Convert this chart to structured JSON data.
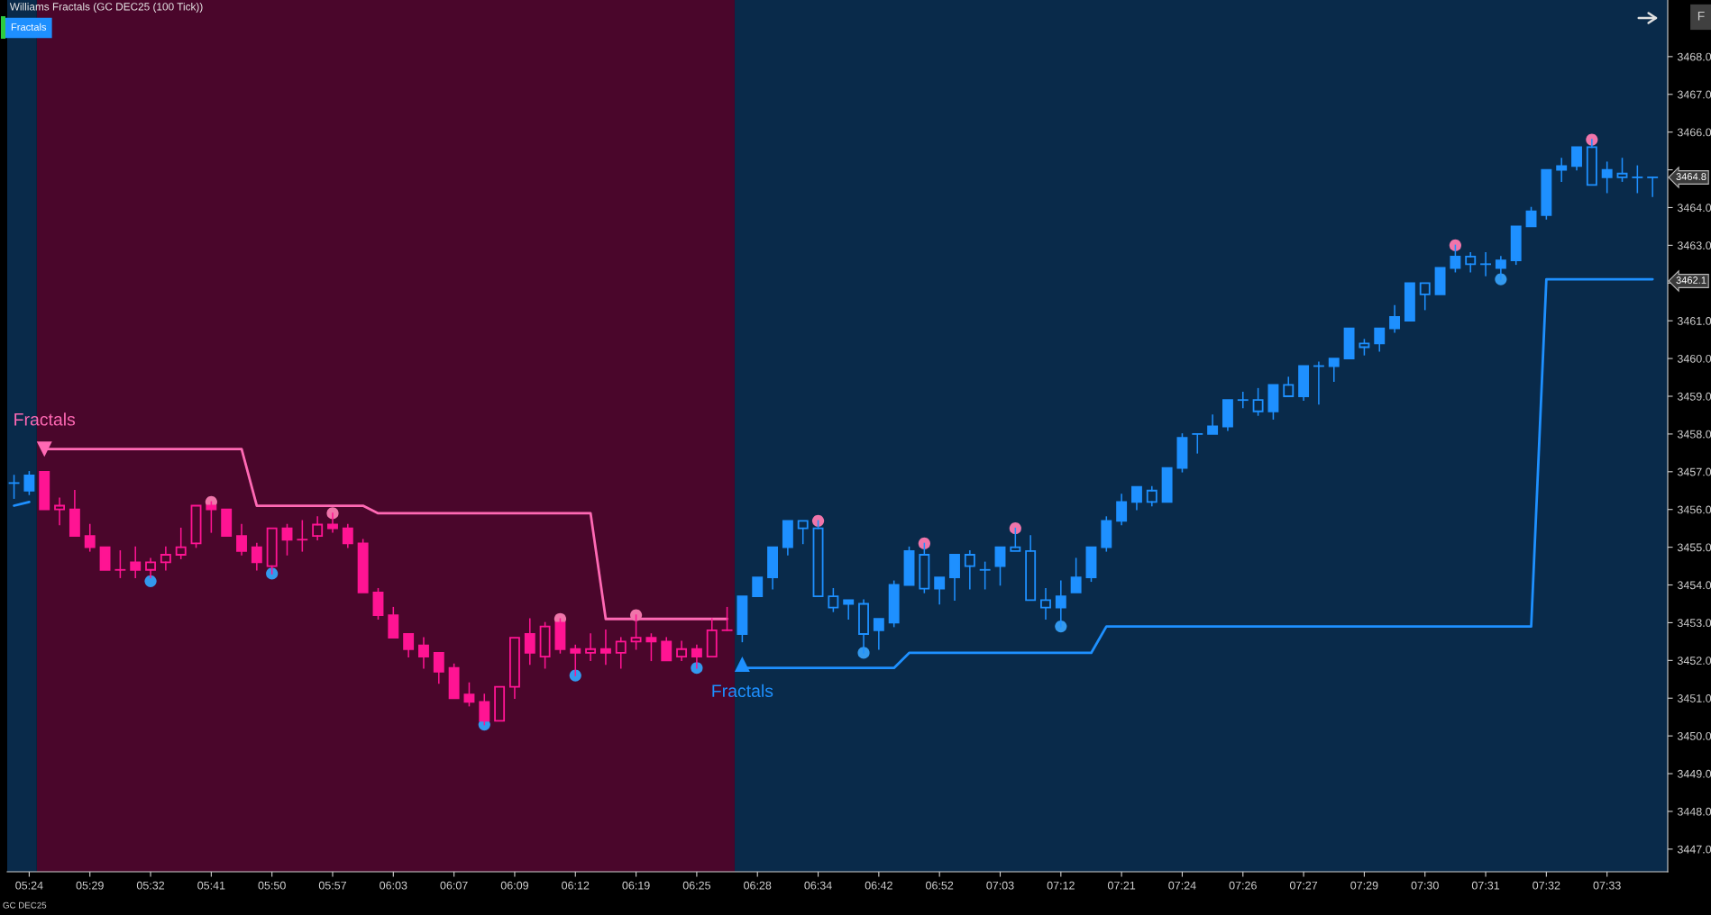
{
  "chart_data": {
    "type": "candlestick",
    "title": "Williams Fractals (GC DEC25 (100 Tick))",
    "categories": [
      null,
      "05:24",
      null,
      null,
      null,
      "05:29",
      null,
      null,
      null,
      "05:32",
      null,
      null,
      null,
      "05:41",
      null,
      null,
      null,
      "05:50",
      null,
      null,
      null,
      "05:57",
      null,
      null,
      null,
      "06:03",
      null,
      null,
      null,
      "06:07",
      null,
      null,
      null,
      "06:09",
      null,
      null,
      null,
      "06:12",
      null,
      null,
      null,
      "06:19",
      null,
      null,
      null,
      "06:25",
      null,
      null,
      null,
      "06:28",
      null,
      null,
      null,
      "06:34",
      null,
      null,
      null,
      "06:42",
      null,
      null,
      null,
      "06:52",
      null,
      null,
      null,
      "07:03",
      null,
      null,
      null,
      "07:12",
      null,
      null,
      null,
      "07:21",
      null,
      null,
      null,
      "07:24",
      null,
      null,
      null,
      "07:26",
      null,
      null,
      null,
      "07:27",
      null,
      null,
      null,
      "07:29",
      null,
      null,
      null,
      "07:30",
      null,
      null,
      null,
      "07:31",
      null,
      null,
      null,
      "07:32",
      null,
      null,
      null,
      "07:33",
      null,
      null,
      null
    ],
    "ylim": [
      3446.4,
      3469.5
    ],
    "yticks": [
      {
        "value": 3447,
        "label": "3447.0"
      },
      {
        "value": 3448,
        "label": "3448.0"
      },
      {
        "value": 3449,
        "label": "3449.0"
      },
      {
        "value": 3450,
        "label": "3450.0"
      },
      {
        "value": 3451,
        "label": "3451.0"
      },
      {
        "value": 3452,
        "label": "3452.0"
      },
      {
        "value": 3453,
        "label": "3453.0"
      },
      {
        "value": 3454,
        "label": "3454.0"
      },
      {
        "value": 3455,
        "label": "3455.0"
      },
      {
        "value": 3456,
        "label": "3456.0"
      },
      {
        "value": 3457,
        "label": "3457.0"
      },
      {
        "value": 3458,
        "label": "3458.0"
      },
      {
        "value": 3459,
        "label": "3459.0"
      },
      {
        "value": 3460,
        "label": "3460.0"
      },
      {
        "value": 3461,
        "label": "3461.0"
      },
      {
        "value": 3462,
        "label": null
      },
      {
        "value": 3463,
        "label": "3463.0"
      },
      {
        "value": 3464,
        "label": "3464.0"
      },
      {
        "value": 3465,
        "label": null
      },
      {
        "value": 3466,
        "label": "3466.0"
      },
      {
        "value": 3467,
        "label": "3467.0"
      },
      {
        "value": 3468,
        "label": "3468.0"
      }
    ],
    "grid": false,
    "series": [
      {
        "type": "candlestick",
        "color": "#ff1493",
        "ohlc": [
          null,
          null,
          [
            3457.0,
            3457.0,
            3456.0,
            3456.0
          ],
          [
            3456.0,
            3456.3,
            3455.6,
            3456.1
          ],
          [
            3456.0,
            3456.5,
            3455.3,
            3455.3
          ],
          [
            3455.3,
            3455.6,
            3454.9,
            3455.0
          ],
          [
            3455.0,
            3455.0,
            3454.4,
            3454.4
          ],
          [
            3454.4,
            3454.9,
            3454.2,
            3454.4
          ],
          [
            3454.6,
            3455.0,
            3454.2,
            3454.4
          ],
          [
            3454.4,
            3454.7,
            3454.2,
            3454.6
          ],
          [
            3454.6,
            3455.0,
            3454.4,
            3454.8
          ],
          [
            3454.8,
            3455.5,
            3454.7,
            3455.0
          ],
          [
            3455.1,
            3456.1,
            3455.0,
            3456.1
          ],
          [
            3456.1,
            3456.2,
            3455.4,
            3456.0
          ],
          [
            3456.0,
            3456.0,
            3455.3,
            3455.3
          ],
          [
            3455.3,
            3455.6,
            3454.8,
            3454.9
          ],
          [
            3455.0,
            3455.1,
            3454.4,
            3454.6
          ],
          [
            3454.5,
            3455.5,
            3454.3,
            3455.5
          ],
          [
            3455.5,
            3455.6,
            3454.8,
            3455.2
          ],
          [
            3455.2,
            3455.7,
            3454.9,
            3455.2
          ],
          [
            3455.3,
            3455.8,
            3455.2,
            3455.6
          ],
          [
            3455.6,
            3455.9,
            3455.4,
            3455.5
          ],
          [
            3455.5,
            3455.6,
            3455.0,
            3455.1
          ],
          [
            3455.1,
            3455.2,
            3453.8,
            3453.8
          ],
          [
            3453.8,
            3453.9,
            3453.1,
            3453.2
          ],
          [
            3453.2,
            3453.4,
            3452.6,
            3452.6
          ],
          [
            3452.7,
            3452.7,
            3452.1,
            3452.3
          ],
          [
            3452.4,
            3452.6,
            3451.8,
            3452.1
          ],
          [
            3452.2,
            3452.2,
            3451.4,
            3451.7
          ],
          [
            3451.8,
            3451.9,
            3451.0,
            3451.0
          ],
          [
            3451.1,
            3451.4,
            3450.8,
            3450.9
          ],
          [
            3450.9,
            3451.1,
            3450.3,
            3450.4
          ],
          [
            3450.4,
            3451.3,
            3450.4,
            3451.3
          ],
          [
            3451.3,
            3452.6,
            3451.0,
            3452.6
          ],
          [
            3452.7,
            3453.1,
            3451.9,
            3452.2
          ],
          [
            3452.1,
            3453.0,
            3451.8,
            3452.9
          ],
          [
            3453.0,
            3453.1,
            3452.2,
            3452.3
          ],
          [
            3452.3,
            3452.4,
            3451.6,
            3452.2
          ],
          [
            3452.2,
            3452.7,
            3452.0,
            3452.3
          ],
          [
            3452.3,
            3452.8,
            3451.9,
            3452.2
          ],
          [
            3452.2,
            3452.6,
            3451.8,
            3452.5
          ],
          [
            3452.5,
            3453.2,
            3452.3,
            3452.6
          ],
          [
            3452.6,
            3452.7,
            3452.0,
            3452.5
          ],
          [
            3452.5,
            3452.6,
            3452.0,
            3452.0
          ],
          [
            3452.1,
            3452.5,
            3452.0,
            3452.3
          ],
          [
            3452.3,
            3452.4,
            3451.8,
            3452.1
          ],
          [
            3452.1,
            3453.1,
            3452.1,
            3452.8
          ],
          [
            3452.8,
            3453.4,
            3452.8,
            3452.8
          ],
          null,
          null,
          null,
          null,
          null,
          null,
          null,
          null,
          null,
          null,
          null,
          null,
          null,
          null,
          null,
          null,
          null,
          null,
          null,
          null,
          null,
          null,
          null,
          null,
          null,
          null,
          null,
          null,
          null,
          null,
          null,
          null,
          null,
          null,
          null,
          null,
          null,
          null,
          null,
          null,
          null,
          null,
          null,
          null,
          null,
          null,
          null,
          null,
          null,
          null,
          null,
          null,
          null,
          null,
          null,
          null,
          null,
          null,
          null,
          null,
          null
        ]
      },
      {
        "type": "candlestick",
        "color": "#1e90ff",
        "ohlc": [
          [
            3456.7,
            3456.9,
            3456.3,
            3456.7
          ],
          [
            3456.5,
            3457.0,
            3456.4,
            3456.9
          ],
          null,
          null,
          null,
          null,
          null,
          null,
          null,
          null,
          null,
          null,
          null,
          null,
          null,
          null,
          null,
          null,
          null,
          null,
          null,
          null,
          null,
          null,
          null,
          null,
          null,
          null,
          null,
          null,
          null,
          null,
          null,
          null,
          null,
          null,
          null,
          null,
          null,
          null,
          null,
          null,
          null,
          null,
          null,
          null,
          null,
          null,
          [
            3452.7,
            3453.7,
            3452.5,
            3453.7
          ],
          [
            3453.7,
            3454.2,
            3453.7,
            3454.2
          ],
          [
            3454.2,
            3455.0,
            3453.9,
            3455.0
          ],
          [
            3455.0,
            3455.7,
            3454.8,
            3455.7
          ],
          [
            3455.7,
            3455.7,
            3455.1,
            3455.5
          ],
          [
            3455.5,
            3455.7,
            3453.7,
            3453.7
          ],
          [
            3453.7,
            3453.9,
            3453.3,
            3453.4
          ],
          [
            3453.5,
            3453.6,
            3453.1,
            3453.6
          ],
          [
            3453.5,
            3453.6,
            3452.2,
            3452.7
          ],
          [
            3452.8,
            3453.1,
            3452.3,
            3453.1
          ],
          [
            3453.0,
            3454.1,
            3452.9,
            3454.0
          ],
          [
            3454.0,
            3455.0,
            3454.0,
            3454.9
          ],
          [
            3454.8,
            3455.1,
            3453.8,
            3453.9
          ],
          [
            3453.9,
            3454.2,
            3453.5,
            3454.2
          ],
          [
            3454.2,
            3454.8,
            3453.6,
            3454.8
          ],
          [
            3454.8,
            3454.9,
            3453.9,
            3454.5
          ],
          [
            3454.4,
            3454.6,
            3453.9,
            3454.4
          ],
          [
            3454.5,
            3455.0,
            3454.0,
            3455.0
          ],
          [
            3455.0,
            3455.5,
            3454.9,
            3454.9
          ],
          [
            3454.9,
            3455.3,
            3453.6,
            3453.6
          ],
          [
            3453.6,
            3453.9,
            3453.1,
            3453.4
          ],
          [
            3453.4,
            3454.1,
            3452.9,
            3453.7
          ],
          [
            3453.8,
            3454.7,
            3453.8,
            3454.2
          ],
          [
            3454.2,
            3455.0,
            3454.1,
            3455.0
          ],
          [
            3455.0,
            3455.8,
            3454.9,
            3455.7
          ],
          [
            3455.7,
            3456.4,
            3455.6,
            3456.2
          ],
          [
            3456.2,
            3456.6,
            3456.0,
            3456.6
          ],
          [
            3456.5,
            3456.6,
            3456.1,
            3456.2
          ],
          [
            3456.2,
            3457.1,
            3456.2,
            3457.1
          ],
          [
            3457.1,
            3458.0,
            3457.0,
            3457.9
          ],
          [
            3458.0,
            3458.0,
            3457.5,
            3458.0
          ],
          [
            3458.0,
            3458.5,
            3458.0,
            3458.2
          ],
          [
            3458.2,
            3458.9,
            3458.1,
            3458.9
          ],
          [
            3458.9,
            3459.1,
            3458.7,
            3458.9
          ],
          [
            3458.9,
            3459.2,
            3458.5,
            3458.6
          ],
          [
            3458.6,
            3459.3,
            3458.4,
            3459.3
          ],
          [
            3459.3,
            3459.5,
            3459.0,
            3459.0
          ],
          [
            3459.0,
            3459.8,
            3458.9,
            3459.8
          ],
          [
            3459.8,
            3459.9,
            3458.8,
            3459.8
          ],
          [
            3459.8,
            3460.0,
            3459.4,
            3460.0
          ],
          [
            3460.0,
            3460.8,
            3460.0,
            3460.8
          ],
          [
            3460.4,
            3460.5,
            3460.1,
            3460.3
          ],
          [
            3460.4,
            3460.8,
            3460.2,
            3460.8
          ],
          [
            3460.8,
            3461.4,
            3460.7,
            3461.1
          ],
          [
            3461.0,
            3462.0,
            3461.0,
            3462.0
          ],
          [
            3462.0,
            3462.0,
            3461.3,
            3461.7
          ],
          [
            3461.7,
            3462.4,
            3461.7,
            3462.4
          ],
          [
            3462.4,
            3463.0,
            3462.3,
            3462.7
          ],
          [
            3462.7,
            3462.8,
            3462.3,
            3462.5
          ],
          [
            3462.5,
            3462.8,
            3462.2,
            3462.5
          ],
          [
            3462.4,
            3462.7,
            3462.1,
            3462.6
          ],
          [
            3462.6,
            3463.5,
            3462.5,
            3463.5
          ],
          [
            3463.5,
            3464.0,
            3463.5,
            3463.9
          ],
          [
            3463.8,
            3465.0,
            3463.7,
            3465.0
          ],
          [
            3465.0,
            3465.3,
            3464.7,
            3465.1
          ],
          [
            3465.1,
            3465.6,
            3465.0,
            3465.6
          ],
          [
            3465.6,
            3465.8,
            3464.6,
            3464.6
          ],
          [
            3464.8,
            3465.2,
            3464.4,
            3465.0
          ],
          [
            3464.9,
            3465.3,
            3464.7,
            3464.8
          ],
          [
            3464.8,
            3465.1,
            3464.4,
            3464.8
          ],
          [
            3464.8,
            3464.8,
            3464.3,
            3464.8
          ]
        ]
      },
      {
        "type": "line",
        "color": "#ff69b4",
        "values": [
          null,
          null,
          3457.6,
          3457.6,
          3457.6,
          3457.6,
          3457.6,
          3457.6,
          3457.6,
          3457.6,
          3457.6,
          3457.6,
          3457.6,
          3457.6,
          3457.6,
          3457.6,
          3456.1,
          3456.1,
          3456.1,
          3456.1,
          3456.1,
          3456.1,
          3456.1,
          3456.1,
          3455.9,
          3455.9,
          3455.9,
          3455.9,
          3455.9,
          3455.9,
          3455.9,
          3455.9,
          3455.9,
          3455.9,
          3455.9,
          3455.9,
          3455.9,
          3455.9,
          3455.9,
          3453.1,
          3453.1,
          3453.1,
          3453.1,
          3453.1,
          3453.1,
          3453.1,
          3453.1,
          3453.1,
          null,
          null,
          null,
          null,
          null,
          null,
          null,
          null,
          null,
          null,
          null,
          null,
          null,
          null,
          null,
          null,
          null,
          null,
          null,
          null,
          null,
          null,
          null,
          null,
          null,
          null,
          null,
          null,
          null,
          null,
          null,
          null,
          null,
          null,
          null,
          null,
          null,
          null,
          null,
          null,
          null,
          null,
          null,
          null,
          null,
          null,
          null,
          null,
          null,
          null,
          null,
          null,
          null,
          null,
          null,
          null,
          null,
          null,
          null,
          null,
          null
        ]
      },
      {
        "type": "line",
        "color": "#1e90ff",
        "values": [
          3456.1,
          3456.2,
          null,
          null,
          null,
          null,
          null,
          null,
          null,
          null,
          null,
          null,
          null,
          null,
          null,
          null,
          null,
          null,
          null,
          null,
          null,
          null,
          null,
          null,
          null,
          null,
          null,
          null,
          null,
          null,
          null,
          null,
          null,
          null,
          null,
          null,
          null,
          null,
          null,
          null,
          null,
          null,
          null,
          null,
          null,
          null,
          null,
          null,
          3451.8,
          3451.8,
          3451.8,
          3451.8,
          3451.8,
          3451.8,
          3451.8,
          3451.8,
          3451.8,
          3451.8,
          3451.8,
          3452.2,
          3452.2,
          3452.2,
          3452.2,
          3452.2,
          3452.2,
          3452.2,
          3452.2,
          3452.2,
          3452.2,
          3452.2,
          3452.2,
          3452.2,
          3452.9,
          3452.9,
          3452.9,
          3452.9,
          3452.9,
          3452.9,
          3452.9,
          3452.9,
          3452.9,
          3452.9,
          3452.9,
          3452.9,
          3452.9,
          3452.9,
          3452.9,
          3452.9,
          3452.9,
          3452.9,
          3452.9,
          3452.9,
          3452.9,
          3452.9,
          3452.9,
          3452.9,
          3452.9,
          3452.9,
          3452.9,
          3452.9,
          3452.9,
          3462.1,
          3462.1,
          3462.1,
          3462.1,
          3462.1,
          3462.1,
          3462.1,
          3462.1
        ]
      },
      {
        "type": "scatter",
        "color": "#f075aa",
        "marker": "circle",
        "values": [
          null,
          null,
          null,
          null,
          null,
          null,
          null,
          null,
          null,
          null,
          null,
          null,
          null,
          3456.2,
          null,
          null,
          null,
          null,
          null,
          null,
          null,
          3455.9,
          null,
          null,
          null,
          null,
          null,
          null,
          null,
          null,
          null,
          null,
          null,
          null,
          null,
          null,
          3453.1,
          null,
          null,
          null,
          null,
          3453.2,
          null,
          null,
          null,
          null,
          null,
          null,
          null,
          null,
          null,
          null,
          null,
          3455.7,
          null,
          null,
          null,
          null,
          null,
          null,
          3455.1,
          null,
          null,
          null,
          null,
          null,
          3455.5,
          null,
          null,
          null,
          null,
          null,
          null,
          null,
          null,
          null,
          null,
          null,
          null,
          null,
          null,
          null,
          null,
          null,
          null,
          null,
          null,
          null,
          null,
          null,
          null,
          null,
          null,
          null,
          null,
          3463.0,
          null,
          null,
          null,
          null,
          null,
          null,
          null,
          null,
          3465.8,
          null,
          null,
          null,
          null
        ]
      },
      {
        "type": "scatter",
        "color": "#3399ee",
        "marker": "circle",
        "values": [
          null,
          null,
          null,
          null,
          null,
          null,
          null,
          null,
          null,
          3454.1,
          null,
          null,
          null,
          null,
          null,
          null,
          null,
          3454.3,
          null,
          null,
          null,
          null,
          null,
          null,
          null,
          null,
          null,
          null,
          null,
          null,
          null,
          3450.3,
          null,
          null,
          null,
          null,
          null,
          3451.6,
          null,
          null,
          null,
          null,
          null,
          null,
          null,
          3451.8,
          null,
          null,
          null,
          null,
          null,
          null,
          null,
          null,
          null,
          null,
          3452.2,
          null,
          null,
          null,
          null,
          null,
          null,
          null,
          null,
          null,
          null,
          null,
          null,
          3452.9,
          null,
          null,
          null,
          null,
          null,
          null,
          null,
          null,
          null,
          null,
          null,
          null,
          null,
          null,
          null,
          null,
          null,
          null,
          null,
          null,
          null,
          null,
          null,
          null,
          null,
          null,
          null,
          null,
          3462.1,
          null,
          null,
          null,
          null,
          null,
          null,
          null,
          null,
          null,
          null
        ]
      },
      {
        "type": "scatter",
        "name": "Fractals",
        "color": "#ff69b4",
        "marker": "triangle-down",
        "values": [
          null,
          null,
          3457.6,
          null,
          null,
          null,
          null,
          null,
          null,
          null,
          null,
          null,
          null,
          null,
          null,
          null,
          null,
          null,
          null,
          null,
          null,
          null,
          null,
          null,
          null,
          null,
          null,
          null,
          null,
          null,
          null,
          null,
          null,
          null,
          null,
          null,
          null,
          null,
          null,
          null,
          null,
          null,
          null,
          null,
          null,
          null,
          null,
          null,
          null,
          null,
          null,
          null,
          null,
          null,
          null,
          null,
          null,
          null,
          null,
          null,
          null,
          null,
          null,
          null,
          null,
          null,
          null,
          null,
          null,
          null,
          null,
          null,
          null,
          null,
          null,
          null,
          null,
          null,
          null,
          null,
          null,
          null,
          null,
          null,
          null,
          null,
          null,
          null,
          null,
          null,
          null,
          null,
          null,
          null,
          null,
          null,
          null,
          null,
          null,
          null,
          null,
          null,
          null,
          null,
          null,
          null,
          null,
          null,
          null
        ]
      },
      {
        "type": "scatter",
        "name": "Fractals",
        "color": "#1e90ff",
        "marker": "triangle",
        "values": [
          null,
          null,
          null,
          null,
          null,
          null,
          null,
          null,
          null,
          null,
          null,
          null,
          null,
          null,
          null,
          null,
          null,
          null,
          null,
          null,
          null,
          null,
          null,
          null,
          null,
          null,
          null,
          null,
          null,
          null,
          null,
          null,
          null,
          null,
          null,
          null,
          null,
          null,
          null,
          null,
          null,
          null,
          null,
          null,
          null,
          null,
          null,
          null,
          3451.9,
          null,
          null,
          null,
          null,
          null,
          null,
          null,
          null,
          null,
          null,
          null,
          null,
          null,
          null,
          null,
          null,
          null,
          null,
          null,
          null,
          null,
          null,
          null,
          null,
          null,
          null,
          null,
          null,
          null,
          null,
          null,
          null,
          null,
          null,
          null,
          null,
          null,
          null,
          null,
          null,
          null,
          null,
          null,
          null,
          null,
          null,
          null,
          null,
          null,
          null,
          null,
          null,
          null,
          null,
          null,
          null,
          null,
          null,
          null,
          null
        ]
      }
    ],
    "annotations": [
      "Fractals",
      "F",
      "GC DEC25",
      "3464.8",
      "3462.1"
    ]
  }
}
